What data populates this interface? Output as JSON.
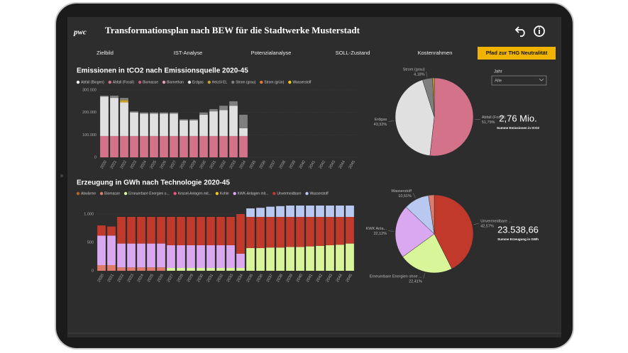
{
  "header": {
    "logo": "pwc",
    "title": "Transformationsplan nach BEW für die Stadtwerke Musterstadt"
  },
  "nav": {
    "tabs": [
      "Zielbild",
      "IST-Analyse",
      "Potenzialanalyse",
      "SOLL-Zustand",
      "Kostenrahmen",
      "Pfad zur THG Neutralität"
    ],
    "active_tab": 5
  },
  "filter": {
    "label": "Jahr",
    "value": "Alle"
  },
  "kpis": [
    {
      "value": "2,76 Mio.",
      "label": "Summe Emissionen in tCO2"
    },
    {
      "value": "23.538,66",
      "label": "Summe Erzeugung in GWh"
    }
  ],
  "chart_data": [
    {
      "type": "bar",
      "stacked": true,
      "title": "Emissionen in tCO2 nach Emissionsquelle 2020-45",
      "categories": [
        "2020",
        "2021",
        "2022",
        "2023",
        "2024",
        "2025",
        "2026",
        "2027",
        "2028",
        "2029",
        "2030",
        "2031",
        "2032",
        "2033",
        "2034",
        "2035",
        "2036",
        "2037",
        "2038",
        "2039",
        "2040",
        "2041",
        "2042",
        "2043",
        "2044",
        "2045"
      ],
      "ylim": [
        0,
        300000
      ],
      "yticks": [
        0,
        {
          "value": 100000,
          "label": "100.000"
        },
        {
          "value": 200000,
          "label": "200.000"
        },
        {
          "value": 300000,
          "label": "300.000"
        }
      ],
      "series": [
        {
          "name": "Abfall (Biogen)",
          "color": "#f2f2f2",
          "values": [
            0,
            0,
            0,
            0,
            0,
            0,
            0,
            0,
            0,
            0,
            0,
            0,
            0,
            0,
            0,
            null,
            null,
            null,
            null,
            null,
            null,
            null,
            null,
            null,
            null,
            null
          ]
        },
        {
          "name": "Abfall (Fossil)",
          "color": "#d4728a",
          "values": [
            95000,
            95000,
            95000,
            95000,
            95000,
            95000,
            95000,
            95000,
            95000,
            95000,
            95000,
            95000,
            95000,
            95000,
            95000,
            null,
            null,
            null,
            null,
            null,
            null,
            null,
            null,
            null,
            null,
            null
          ]
        },
        {
          "name": "Biomasse",
          "color": "#c25a76",
          "values": [
            0,
            0,
            0,
            0,
            0,
            0,
            0,
            0,
            0,
            0,
            0,
            0,
            0,
            0,
            0,
            null,
            null,
            null,
            null,
            null,
            null,
            null,
            null,
            null,
            null,
            null
          ]
        },
        {
          "name": "Biomethan",
          "color": "#e8a0b4",
          "values": [
            0,
            0,
            0,
            0,
            0,
            0,
            0,
            0,
            0,
            0,
            0,
            0,
            0,
            0,
            0,
            null,
            null,
            null,
            null,
            null,
            null,
            null,
            null,
            null,
            null,
            null
          ]
        },
        {
          "name": "Erdgas",
          "color": "#e0e0e0",
          "values": [
            175000,
            170000,
            150000,
            105000,
            100000,
            100000,
            100000,
            100000,
            70000,
            70000,
            95000,
            110000,
            115000,
            135000,
            35000,
            null,
            null,
            null,
            null,
            null,
            null,
            null,
            null,
            null,
            null,
            null
          ]
        },
        {
          "name": "Heizöl EL",
          "color": "#c9a227",
          "values": [
            0,
            0,
            10000,
            0,
            0,
            0,
            0,
            0,
            0,
            0,
            0,
            0,
            0,
            0,
            0,
            null,
            null,
            null,
            null,
            null,
            null,
            null,
            null,
            null,
            null,
            null
          ]
        },
        {
          "name": "Strom (grau)",
          "color": "#7f7f7f",
          "values": [
            5000,
            10000,
            10000,
            5000,
            5000,
            5000,
            5000,
            5000,
            5000,
            5000,
            10000,
            10000,
            20000,
            20000,
            60000,
            null,
            null,
            null,
            null,
            null,
            null,
            null,
            null,
            null,
            null,
            null
          ]
        },
        {
          "name": "Strom (grün)",
          "color": "#e07b39",
          "values": [
            0,
            0,
            0,
            0,
            0,
            0,
            0,
            0,
            0,
            0,
            0,
            0,
            0,
            0,
            0,
            null,
            null,
            null,
            null,
            null,
            null,
            null,
            null,
            null,
            null,
            null
          ]
        },
        {
          "name": "Wasserstoff",
          "color": "#f0c419",
          "values": [
            0,
            0,
            0,
            0,
            0,
            0,
            0,
            0,
            0,
            0,
            0,
            0,
            0,
            0,
            0,
            null,
            null,
            null,
            null,
            null,
            null,
            null,
            null,
            null,
            null,
            null
          ]
        }
      ]
    },
    {
      "type": "pie",
      "categories": [
        "Abfall (Fossil)",
        "Erdgas",
        "Strom (grau)",
        null
      ],
      "values": [
        51.79,
        43.32,
        4.18,
        0.71
      ],
      "value_labels": [
        "51,79%",
        "43,32%",
        "4,18%",
        null
      ],
      "colors": [
        "#d4728a",
        "#e0e0e0",
        "#7f7f7f",
        "#c9a227"
      ]
    },
    {
      "type": "bar",
      "stacked": true,
      "title": "Erzeugung in GWh nach Technologie 2020-45",
      "categories": [
        "2020",
        "2021",
        "2022",
        "2023",
        "2024",
        "2025",
        "2026",
        "2027",
        "2028",
        "2029",
        "2030",
        "2031",
        "2032",
        "2033",
        "2034",
        "2035",
        "2036",
        "2037",
        "2038",
        "2039",
        "2040",
        "2041",
        "2042",
        "2043",
        "2044",
        "2045"
      ],
      "ylim": [
        0,
        1200
      ],
      "yticks": [
        0,
        500,
        {
          "value": 1000,
          "label": "1.000"
        }
      ],
      "series": [
        {
          "name": "Abwärme",
          "color": "#b5651d",
          "values": [
            0,
            0,
            0,
            0,
            0,
            0,
            0,
            0,
            0,
            0,
            0,
            0,
            0,
            0,
            0,
            0,
            0,
            0,
            0,
            0,
            0,
            0,
            0,
            0,
            0,
            0
          ]
        },
        {
          "name": "Biomasse",
          "color": "#e07a6a",
          "values": [
            100,
            100,
            60,
            60,
            60,
            60,
            60,
            0,
            0,
            0,
            0,
            0,
            0,
            0,
            0,
            0,
            0,
            0,
            0,
            0,
            0,
            0,
            0,
            0,
            0,
            0
          ]
        },
        {
          "name": "Erneuerbare Energien o...",
          "color": "#d8f59a",
          "values": [
            0,
            0,
            0,
            0,
            0,
            0,
            0,
            50,
            50,
            50,
            50,
            50,
            50,
            50,
            50,
            400,
            400,
            410,
            410,
            420,
            420,
            430,
            440,
            450,
            460,
            480
          ]
        },
        {
          "name": "Kessel-Anlagen mit...",
          "color": "#e8547a",
          "values": [
            0,
            0,
            0,
            0,
            0,
            0,
            0,
            0,
            0,
            0,
            0,
            0,
            0,
            0,
            0,
            0,
            0,
            0,
            0,
            0,
            0,
            0,
            0,
            0,
            0,
            0
          ]
        },
        {
          "name": "Kohle",
          "color": "#f0c419",
          "values": [
            0,
            0,
            0,
            0,
            0,
            0,
            0,
            0,
            0,
            0,
            0,
            0,
            0,
            0,
            0,
            0,
            0,
            0,
            0,
            0,
            0,
            0,
            0,
            0,
            0,
            0
          ]
        },
        {
          "name": "KWK-Anlagen mit...",
          "color": "#d9a8f0",
          "values": [
            520,
            520,
            420,
            420,
            420,
            420,
            420,
            400,
            400,
            400,
            400,
            400,
            400,
            400,
            250,
            0,
            0,
            0,
            0,
            0,
            0,
            0,
            0,
            0,
            0,
            0
          ]
        },
        {
          "name": "Unvermeidbare",
          "color": "#c0392b",
          "values": [
            180,
            160,
            470,
            470,
            470,
            470,
            470,
            500,
            500,
            500,
            500,
            500,
            500,
            500,
            700,
            550,
            550,
            540,
            540,
            530,
            530,
            520,
            510,
            500,
            490,
            470
          ]
        },
        {
          "name": "Wasserstoff",
          "color": "#b8c8f0",
          "values": [
            0,
            0,
            0,
            0,
            0,
            0,
            0,
            0,
            0,
            0,
            0,
            0,
            0,
            0,
            0,
            150,
            160,
            180,
            190,
            200,
            200,
            200,
            200,
            200,
            200,
            200
          ]
        }
      ]
    },
    {
      "type": "pie",
      "categories": [
        "Unvermeidbare ...",
        "Erneuerbare Energien ohne ...",
        "KWK Anla...",
        "Wasserstoff",
        null
      ],
      "values": [
        42.57,
        22.41,
        22.12,
        10.51,
        2.39
      ],
      "value_labels": [
        "42,57%",
        "22,41%",
        "22,12%",
        "10,51%",
        null
      ],
      "colors": [
        "#c0392b",
        "#d8f59a",
        "#d9a8f0",
        "#b8c8f0",
        "#e07a6a"
      ]
    }
  ]
}
